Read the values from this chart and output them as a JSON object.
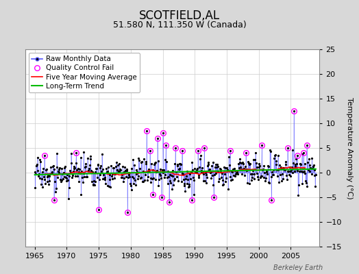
{
  "title": "SCOTFIELD,AL",
  "subtitle": "51.580 N, 111.350 W (Canada)",
  "ylabel": "Temperature Anomaly (°C)",
  "xlabel_label": "Berkeley Earth",
  "xlim": [
    1963.5,
    2009.5
  ],
  "ylim": [
    -15,
    25
  ],
  "yticks": [
    -15,
    -10,
    -5,
    0,
    5,
    10,
    15,
    20,
    25
  ],
  "xticks": [
    1965,
    1970,
    1975,
    1980,
    1985,
    1990,
    1995,
    2000,
    2005
  ],
  "background_color": "#d8d8d8",
  "plot_bg_color": "#ffffff",
  "grid_color": "#cccccc",
  "bar_color": "#5555ff",
  "ma_color": "#ff0000",
  "trend_color": "#00bb00",
  "qc_color": "#ff00ff",
  "marker_color": "#000000",
  "legend_fontsize": 7.5,
  "title_fontsize": 12,
  "subtitle_fontsize": 9,
  "tick_fontsize": 8
}
